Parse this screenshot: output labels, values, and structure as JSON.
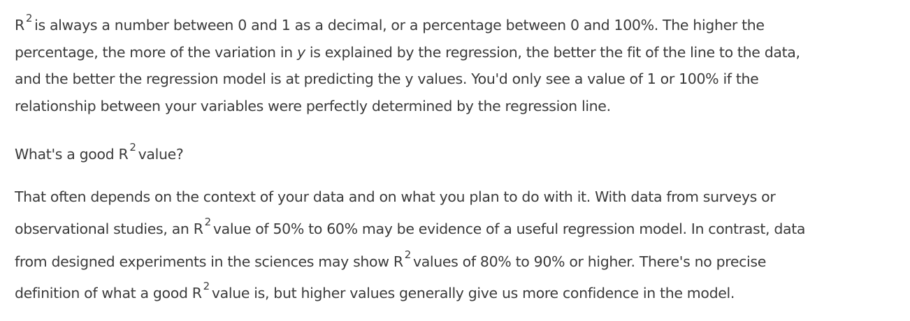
{
  "content": {
    "paragraph1": {
      "line1": {
        "r": "R",
        "sup": "2",
        "text": "is always a number between 0 and 1 as a decimal, or a percentage between 0 and 100%. The higher the"
      },
      "line2": {
        "before": "percentage, the more of the variation in ",
        "italic": "y",
        "after": " is explained by the regression, the better the fit of the line to the data,"
      },
      "line3": "and the better the regression model is at predicting the y values. You'd only see a value of 1 or 100% if the",
      "line4": "relationship between your variables were perfectly determined by the regression line."
    },
    "heading": {
      "before": "What's a good R",
      "sup": "2",
      "after": "value?"
    },
    "paragraph2": {
      "line1": "That often depends on the context of your data and on what you plan to do with it. With data from surveys or",
      "line2": {
        "before": "observational studies, an R",
        "sup": "2",
        "after": "value of 50% to 60% may be evidence of a useful regression model. In contrast, data"
      },
      "line3": {
        "before": "from designed experiments in the sciences may show R",
        "sup": "2",
        "after": "values of 80% to 90% or higher. There's no precise"
      },
      "line4": {
        "before": "definition of what a good R",
        "sup": "2",
        "after": "value is, but higher values generally give us more confidence in the model."
      }
    }
  }
}
